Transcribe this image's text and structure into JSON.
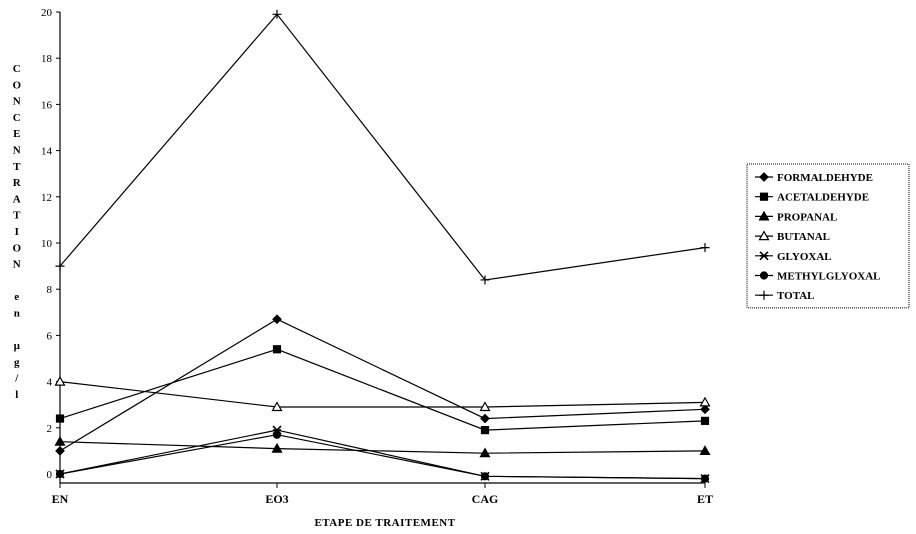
{
  "chart_data": {
    "type": "line",
    "title": "",
    "xlabel": "ETAPE DE TRAITEMENT",
    "ylabel": "CONCENTRATION en µg/l",
    "ylabel_chars": [
      "C",
      "O",
      "N",
      "C",
      "E",
      "N",
      "T",
      "R",
      "A",
      "T",
      "I",
      "O",
      "N",
      "",
      "e",
      "n",
      "",
      "µ",
      "g",
      "/",
      "l"
    ],
    "categories": [
      "EN",
      "EO3",
      "CAG",
      "ET"
    ],
    "ylim": [
      0,
      20
    ],
    "yticks": [
      0,
      2,
      4,
      6,
      8,
      10,
      12,
      14,
      16,
      18,
      20
    ],
    "grid": false,
    "legend_position": "right",
    "series": [
      {
        "name": "FORMALDEHYDE",
        "marker": "diamond",
        "values": [
          1.0,
          6.7,
          2.4,
          2.8
        ]
      },
      {
        "name": "ACETALDEHYDE",
        "marker": "square",
        "values": [
          2.4,
          5.4,
          1.9,
          2.3
        ]
      },
      {
        "name": "PROPANAL",
        "marker": "triangle",
        "values": [
          1.4,
          1.1,
          0.9,
          1.0
        ]
      },
      {
        "name": "BUTANAL",
        "marker": "triangle-open",
        "values": [
          4.0,
          2.9,
          2.9,
          3.1
        ]
      },
      {
        "name": "GLYOXAL",
        "marker": "asterisk",
        "values": [
          0.0,
          1.9,
          -0.1,
          -0.2
        ]
      },
      {
        "name": "METHYLGLYOXAL",
        "marker": "circle",
        "values": [
          0.0,
          1.7,
          -0.1,
          -0.2
        ]
      },
      {
        "name": "TOTAL",
        "marker": "plus",
        "values": [
          9.0,
          19.9,
          8.4,
          9.8
        ]
      }
    ]
  }
}
